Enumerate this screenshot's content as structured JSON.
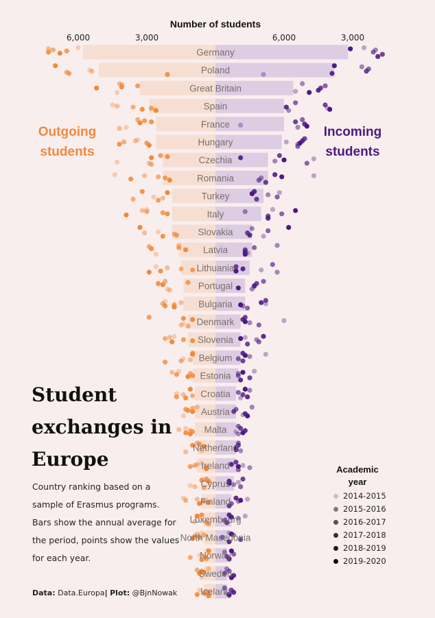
{
  "chart_data": {
    "type": "bar",
    "title": "Student exchanges in Europe",
    "subtitle": "Country ranking based on a sample of Erasmus programs. Bars show the annual average for the period, points show the values for each year.",
    "axis_title": "Number of students",
    "ticks_left": [
      "6,000",
      "3,000"
    ],
    "ticks_right": [
      "3,000",
      "6,000"
    ],
    "left_label": "Outgoing students",
    "right_label": "Incoming students",
    "legend_title": "Academic year",
    "years": [
      "2014-2015",
      "2015-2016",
      "2016-2017",
      "2017-2018",
      "2018-2019",
      "2019-2020"
    ],
    "colors": {
      "outgoing": "#f3893a",
      "incoming": "#4b1a82",
      "bar_out": "#f6dfd2",
      "bar_in": "#dccde2",
      "label": "#7a6e6e"
    },
    "categories": [
      "Germany",
      "Poland",
      "Great Britain",
      "Spain",
      "France",
      "Hungary",
      "Czechia",
      "Romania",
      "Turkey",
      "Italy",
      "Slovakia",
      "Latvia",
      "Lithuania",
      "Portugal",
      "Bulgaria",
      "Denmark",
      "Slovenia",
      "Belgium",
      "Estonia",
      "Croatia",
      "Austria",
      "Malta",
      "Netherland",
      "Ireland",
      "Cyprus",
      "Finland",
      "Luxembourg",
      "North Macedonia",
      "Norway",
      "Sweden",
      "Iceland"
    ],
    "series": [
      {
        "name": "Outgoing students",
        "values": [
          5800,
          5100,
          3300,
          2900,
          2600,
          2600,
          2300,
          2300,
          1900,
          1900,
          1900,
          1600,
          1500,
          1400,
          1400,
          1200,
          1200,
          1000,
          1000,
          900,
          900,
          900,
          800,
          800,
          600,
          600,
          500,
          500,
          500,
          500,
          500
        ],
        "points": [
          [
            6000,
            7300,
            7100,
            6500,
            7300,
            6800
          ],
          [
            5500,
            5400,
            6500,
            6400,
            2100,
            7000
          ],
          [
            4300,
            4200,
            4100,
            3400,
            4100,
            5200
          ],
          [
            4500,
            4300,
            3600,
            2800,
            3200,
            2600
          ],
          [
            3900,
            4200,
            3400,
            3100,
            2800,
            3300
          ],
          [
            3400,
            3500,
            4000,
            3000,
            4200,
            2900
          ],
          [
            4300,
            2900,
            2800,
            2400,
            2100,
            2800
          ],
          [
            4400,
            3100,
            2500,
            2200,
            3700,
            2000
          ],
          [
            2700,
            2300,
            3600,
            2500,
            3200,
            2100
          ],
          [
            3000,
            3200,
            3000,
            2300,
            2100,
            3900
          ],
          [
            2500,
            3100,
            1800,
            1700,
            2300,
            3300
          ],
          [
            2600,
            1600,
            2900,
            1600,
            2800,
            1300
          ],
          [
            2600,
            2100,
            1500,
            1000,
            2400,
            2900
          ],
          [
            2100,
            2000,
            2200,
            1200,
            2500,
            2300
          ],
          [
            2200,
            1500,
            2300,
            1800,
            2200,
            1800
          ],
          [
            1400,
            1500,
            1200,
            2900,
            1400,
            1000
          ],
          [
            1800,
            2000,
            2200,
            1400,
            1000,
            1900
          ],
          [
            1400,
            1100,
            1500,
            2200,
            1000,
            1000
          ],
          [
            1600,
            1900,
            1100,
            1700,
            1000,
            1200
          ],
          [
            1700,
            1400,
            1000,
            1700,
            1300,
            1100
          ],
          [
            1400,
            800,
            1000,
            1300,
            1200,
            1000
          ],
          [
            1300,
            1600,
            1100,
            1000,
            1300,
            1100
          ],
          [
            600,
            1300,
            800,
            700,
            1000,
            500
          ],
          [
            600,
            800,
            900,
            1100,
            400,
            400
          ],
          [
            1100,
            900,
            500,
            400,
            600,
            300
          ],
          [
            1400,
            800,
            1300,
            500,
            300,
            700
          ],
          [
            600,
            900,
            400,
            300,
            600,
            800
          ],
          [
            600,
            800,
            500,
            900,
            700,
            1000
          ],
          [
            700,
            500,
            1100,
            400,
            600,
            300
          ],
          [
            600,
            300,
            800,
            600,
            500,
            700
          ],
          [
            700,
            400,
            300,
            500,
            800,
            300
          ]
        ]
      },
      {
        "name": "Incoming students",
        "values": [
          5800,
          5200,
          3400,
          3000,
          3000,
          2900,
          2300,
          2300,
          2100,
          2000,
          1600,
          1600,
          1500,
          1300,
          1300,
          1100,
          1100,
          1100,
          1000,
          900,
          900,
          900,
          900,
          900,
          800,
          700,
          700,
          600,
          500,
          500,
          500
        ],
        "points": [
          [
            6500,
            7000,
            6900,
            7300,
            7100,
            5900
          ],
          [
            2100,
            6400,
            6700,
            6600,
            5100,
            5200
          ],
          [
            3500,
            3800,
            4800,
            4600,
            4500,
            4100
          ],
          [
            4900,
            3200,
            3500,
            4800,
            3100,
            5000
          ],
          [
            1100,
            3600,
            3800,
            3500,
            3900,
            4000
          ],
          [
            3100,
            3600,
            3600,
            3900,
            3800,
            3700
          ],
          [
            4300,
            2600,
            4000,
            2800,
            1100,
            3000
          ],
          [
            4300,
            2000,
            1900,
            2200,
            2600,
            2900
          ],
          [
            2800,
            2300,
            2700,
            1800,
            1700,
            1600
          ],
          [
            2500,
            1300,
            2900,
            2300,
            2300,
            3500
          ],
          [
            2100,
            1600,
            2300,
            1400,
            1500,
            3200
          ],
          [
            1400,
            2700,
            1700,
            1300,
            1300,
            1300
          ],
          [
            2000,
            2700,
            2500,
            900,
            1200,
            900
          ],
          [
            1700,
            1600,
            2100,
            1800,
            1700,
            1000
          ],
          [
            2200,
            1200,
            1400,
            2200,
            2000,
            1100
          ],
          [
            3000,
            1500,
            1900,
            1300,
            1200,
            1300
          ],
          [
            1300,
            1800,
            1900,
            1400,
            2100,
            1100
          ],
          [
            2200,
            1500,
            1000,
            1200,
            1200,
            1300
          ],
          [
            1700,
            1000,
            1000,
            1500,
            1100,
            1200
          ],
          [
            1100,
            1500,
            1000,
            1200,
            1400,
            1300
          ],
          [
            1200,
            1600,
            900,
            800,
            1300,
            1400
          ],
          [
            900,
            1000,
            1000,
            1100,
            1300,
            1200
          ],
          [
            900,
            1100,
            1000,
            1000,
            900,
            900
          ],
          [
            1200,
            1500,
            1000,
            900,
            700,
            1000
          ],
          [
            1000,
            800,
            1100,
            1200,
            600,
            600
          ],
          [
            1400,
            1000,
            700,
            600,
            900,
            1100
          ],
          [
            1300,
            1000,
            400,
            500,
            600,
            700
          ],
          [
            600,
            800,
            300,
            1100,
            600,
            700
          ],
          [
            600,
            400,
            800,
            500,
            600,
            700
          ],
          [
            700,
            500,
            600,
            400,
            800,
            700
          ],
          [
            500,
            600,
            400,
            700,
            800,
            600
          ]
        ]
      }
    ]
  },
  "legend_colors": [
    "#c9c0c2",
    "#807a7b",
    "#555051",
    "#353032",
    "#1f1a1c",
    "#0f0b0c"
  ],
  "source": {
    "data_label": "Data:",
    "data_value": "Data.Europa",
    "plot_label": "Plot:",
    "plot_value": "@BjnNowak"
  }
}
